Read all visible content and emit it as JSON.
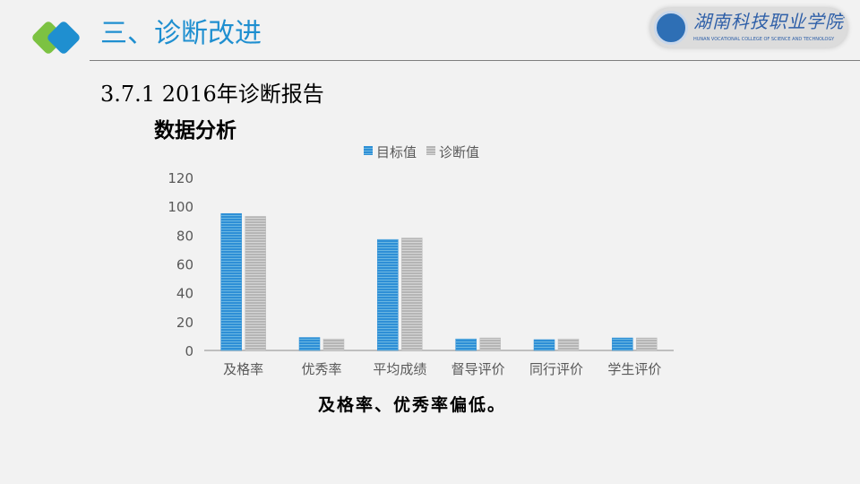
{
  "header": {
    "title": "三、诊断改进",
    "logo_text": "湖南科技职业学院",
    "logo_subtext": "HUNAN VOCATIONAL COLLEGE OF SCIENCE AND TECHNOLOGY",
    "accent": "#1f8fd0"
  },
  "section_title": "3.7.1 2016年诊断报告",
  "subtitle": "数据分析",
  "conclusion": "及格率、优秀率偏低。",
  "chart_data": {
    "type": "bar",
    "categories": [
      "及格率",
      "优秀率",
      "平均成绩",
      "督导评价",
      "同行评价",
      "学生评价"
    ],
    "series": [
      {
        "name": "目标值",
        "color": "#2e8fd6",
        "values": [
          95,
          9,
          77,
          8,
          7.5,
          8.7
        ]
      },
      {
        "name": "诊断值",
        "color": "#bdbdbd",
        "values": [
          93,
          8,
          78,
          8.7,
          8,
          8.7
        ]
      }
    ],
    "ylim": [
      0,
      120
    ],
    "yticks": [
      0,
      20,
      40,
      60,
      80,
      100,
      120
    ],
    "grid": false,
    "legend": "top"
  }
}
